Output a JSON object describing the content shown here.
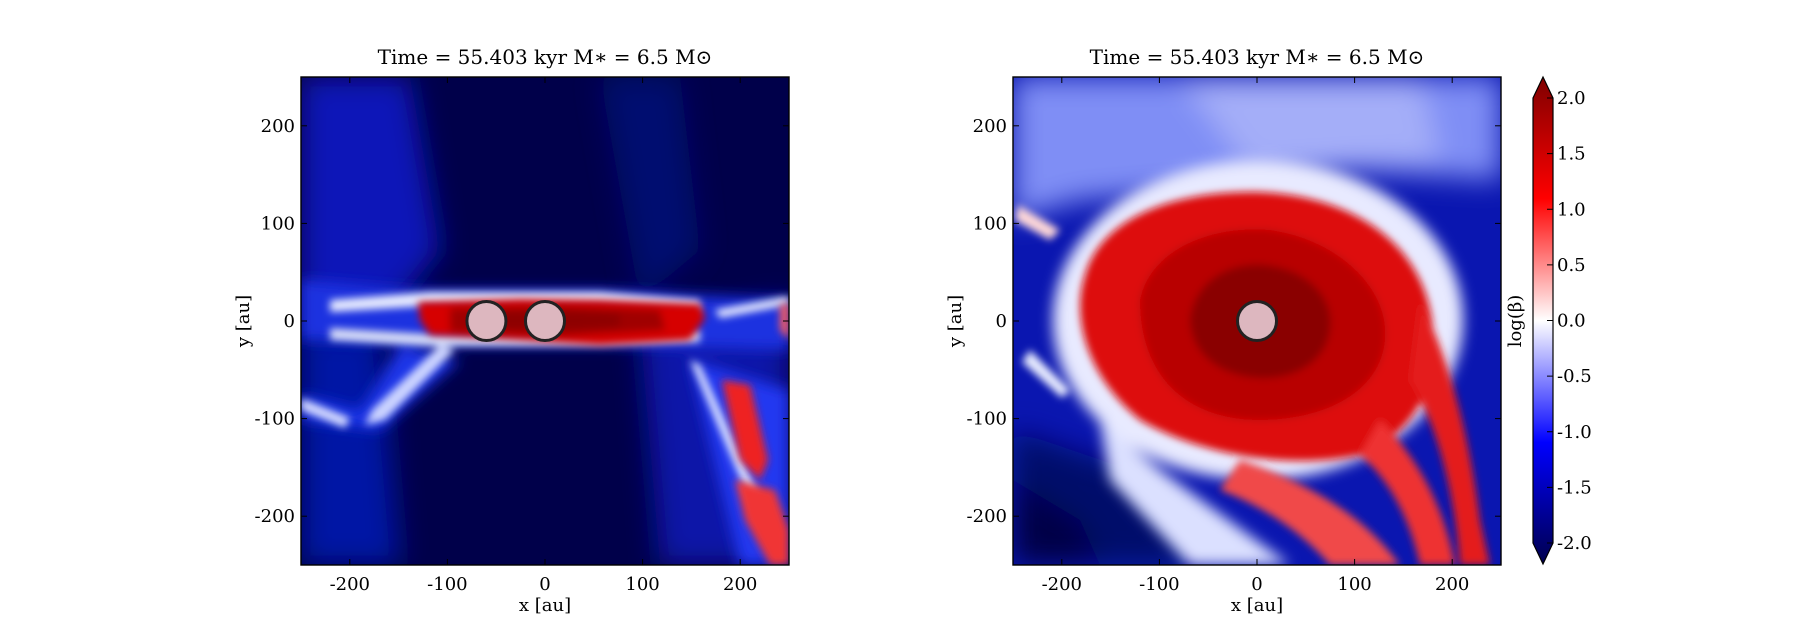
{
  "chart_data": [
    {
      "type": "heatmap",
      "panel": "left",
      "title": "Time = 55.403 kyr    M∗ = 6.5 M⊙",
      "xlabel": "x [au]",
      "ylabel": "y [au]",
      "xlim": [
        -250,
        250
      ],
      "ylim": [
        -250,
        250
      ],
      "xticks": [
        -200,
        -100,
        0,
        100,
        200
      ],
      "yticks": [
        -200,
        -100,
        0,
        100,
        200
      ],
      "xtick_labels": [
        "-200",
        "-100",
        "0",
        "100",
        "200"
      ],
      "ytick_labels": [
        "-200",
        "-100",
        "0",
        "100",
        "200"
      ],
      "field": "log(β)",
      "markers": [
        {
          "x": -60,
          "y": 0,
          "r": 20
        },
        {
          "x": 0,
          "y": 0,
          "r": 20
        }
      ],
      "structures": "Dense red equatorial disk (logβ ≈ 1.5–2) spanning x ≈ -130 to 150 au at y ≈ 0, surrounded by white/blue outflow walls; background logβ ≈ -2; red lobe toward lower right (x ≈ 180–240, y ≈ -60 to -240)"
    },
    {
      "type": "heatmap",
      "panel": "right",
      "title": "Time = 55.403 kyr    M∗ = 6.5 M⊙",
      "xlabel": "x [au]",
      "ylabel": "y [au]",
      "xlim": [
        -250,
        250
      ],
      "ylim": [
        -250,
        250
      ],
      "xticks": [
        -200,
        -100,
        0,
        100,
        200
      ],
      "yticks": [
        -200,
        -100,
        0,
        100,
        200
      ],
      "xtick_labels": [
        "-200",
        "-100",
        "0",
        "100",
        "200"
      ],
      "ytick_labels": [
        "-200",
        "-100",
        "0",
        "100",
        "200"
      ],
      "field": "log(β)",
      "markers": [
        {
          "x": 0,
          "y": 0,
          "r": 20
        }
      ],
      "structures": "Face-on spiral disk of radius ≈ 170 au with logβ ≈ 1.5–2 in the center, spiral arms extending to lower right (x ≈ 200–240, y ≈ -240); surrounding medium logβ ≈ -1 to -2"
    }
  ],
  "colorbar": {
    "label": "log(β)",
    "range": [
      -2.0,
      2.0
    ],
    "ticks": [
      -2.0,
      -1.5,
      -1.0,
      -0.5,
      0.0,
      0.5,
      1.0,
      1.5,
      2.0
    ],
    "tick_labels": [
      "-2.0",
      "-1.5",
      "-1.0",
      "-0.5",
      "0.0",
      "0.5",
      "1.0",
      "1.5",
      "2.0"
    ],
    "colormap": "seismic",
    "levels": 40,
    "extend": "both"
  },
  "colors": {
    "low": "#000040",
    "mid_low": "#0000ff",
    "mid": "#ffffff",
    "mid_high": "#ff0000",
    "high": "#7f0000",
    "marker_fill": "#ddb7bf",
    "marker_edge": "#222222"
  }
}
